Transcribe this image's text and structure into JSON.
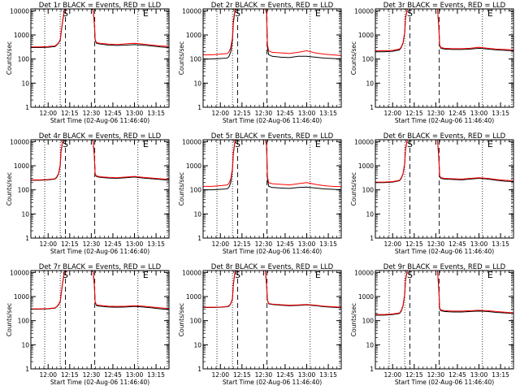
{
  "chart_data": {
    "type": "line",
    "layout": "grid-3x3",
    "y_scale": "log",
    "ylim": [
      1,
      12000
    ],
    "y_ticks": [
      1,
      10,
      100,
      1000,
      10000
    ],
    "y_tick_labels": [
      "1",
      "10",
      "100",
      "1000",
      "10000"
    ],
    "ylabel": "Counts/sec",
    "xlabel": "Start Time (02-Aug-06 11:46:40)",
    "x_range_hours": [
      11.8,
      13.4
    ],
    "x_ticks": [
      12.0,
      12.25,
      12.5,
      12.75,
      13.0,
      13.25
    ],
    "x_tick_labels": [
      "12:00",
      "12:15",
      "12:30",
      "12:45",
      "13:00",
      "13:15"
    ],
    "series_colors": {
      "events": "#000000",
      "lld": "#ff0000"
    },
    "markers": {
      "dotted_lines_x": [
        11.96,
        12.14,
        13.04,
        13.38
      ],
      "dashed_lines_x": [
        12.2,
        12.54
      ],
      "S_x": 12.2,
      "E_x": 13.13
    },
    "x": [
      11.8,
      11.9,
      12.0,
      12.08,
      12.1,
      12.12,
      12.14,
      12.15,
      12.17,
      12.19,
      12.21,
      12.5,
      12.52,
      12.535,
      12.545,
      12.56,
      12.6,
      12.7,
      12.8,
      12.9,
      13.0,
      13.1,
      13.2,
      13.3,
      13.4
    ],
    "panels": [
      {
        "title": "Det 1r BLACK = Events, RED = LLD",
        "events": [
          300,
          300,
          310,
          330,
          380,
          450,
          600,
          1200,
          4000,
          11000,
          12000,
          12000,
          11000,
          3000,
          600,
          450,
          420,
          380,
          370,
          380,
          400,
          380,
          350,
          320,
          300
        ],
        "lld": [
          320,
          320,
          330,
          350,
          400,
          470,
          650,
          1300,
          4500,
          12000,
          12000,
          12000,
          12000,
          3500,
          650,
          480,
          450,
          420,
          400,
          430,
          450,
          420,
          380,
          350,
          330
        ]
      },
      {
        "title": "Det 2r BLACK = Events, RED = LLD",
        "events": [
          100,
          100,
          105,
          110,
          130,
          200,
          600,
          3000,
          11000,
          12000,
          12000,
          12000,
          12000,
          8000,
          300,
          150,
          130,
          120,
          115,
          130,
          130,
          120,
          110,
          105,
          100
        ],
        "lld": [
          150,
          150,
          160,
          170,
          200,
          300,
          800,
          4000,
          12000,
          12000,
          12000,
          12000,
          12000,
          9000,
          400,
          220,
          190,
          180,
          170,
          190,
          220,
          180,
          160,
          150,
          140
        ]
      },
      {
        "title": "Det 3r BLACK = Events, RED = LLD",
        "events": [
          200,
          200,
          210,
          240,
          300,
          450,
          1200,
          5000,
          12000,
          12000,
          12000,
          12000,
          12000,
          2000,
          350,
          280,
          260,
          250,
          250,
          260,
          280,
          260,
          240,
          230,
          220
        ],
        "lld": [
          220,
          220,
          230,
          260,
          320,
          480,
          1300,
          5500,
          12000,
          12000,
          12000,
          12000,
          12000,
          2200,
          380,
          300,
          280,
          270,
          270,
          280,
          310,
          280,
          260,
          250,
          240
        ]
      },
      {
        "title": "Det 4r BLACK = Events, RED = LLD",
        "events": [
          250,
          250,
          260,
          280,
          330,
          450,
          1000,
          4000,
          11000,
          12000,
          12000,
          12000,
          11000,
          2500,
          420,
          360,
          330,
          310,
          300,
          320,
          340,
          310,
          290,
          270,
          250
        ],
        "lld": [
          260,
          260,
          270,
          290,
          350,
          480,
          1100,
          4500,
          12000,
          12000,
          12000,
          12000,
          12000,
          2800,
          450,
          380,
          350,
          330,
          320,
          340,
          360,
          330,
          310,
          290,
          270
        ]
      },
      {
        "title": "Det 5r BLACK = Events, RED = LLD",
        "events": [
          100,
          100,
          105,
          110,
          130,
          200,
          700,
          3000,
          11000,
          12000,
          12000,
          12000,
          12000,
          7000,
          280,
          140,
          125,
          120,
          115,
          125,
          130,
          120,
          110,
          105,
          100
        ],
        "lld": [
          140,
          140,
          150,
          160,
          190,
          280,
          800,
          3500,
          12000,
          12000,
          12000,
          12000,
          12000,
          8000,
          350,
          200,
          180,
          170,
          160,
          180,
          200,
          170,
          150,
          140,
          135
        ]
      },
      {
        "title": "Det 6r BLACK = Events, RED = LLD",
        "events": [
          200,
          200,
          210,
          240,
          300,
          450,
          1200,
          5000,
          12000,
          12000,
          12000,
          12000,
          12000,
          2000,
          350,
          300,
          280,
          270,
          260,
          280,
          300,
          280,
          250,
          230,
          220
        ],
        "lld": [
          210,
          210,
          220,
          250,
          320,
          470,
          1300,
          5500,
          12000,
          12000,
          12000,
          12000,
          12000,
          2200,
          380,
          320,
          300,
          290,
          280,
          300,
          320,
          300,
          270,
          250,
          240
        ]
      },
      {
        "title": "Det 7r BLACK = Events, RED = LLD",
        "events": [
          300,
          300,
          310,
          330,
          380,
          450,
          600,
          1200,
          4000,
          11000,
          12000,
          12000,
          11000,
          3000,
          550,
          420,
          400,
          370,
          360,
          370,
          390,
          370,
          340,
          310,
          290
        ],
        "lld": [
          310,
          310,
          320,
          340,
          390,
          470,
          640,
          1300,
          4400,
          12000,
          12000,
          12000,
          12000,
          3300,
          600,
          450,
          430,
          400,
          390,
          400,
          420,
          400,
          370,
          340,
          320
        ]
      },
      {
        "title": "Det 8r BLACK = Events, RED = LLD",
        "events": [
          350,
          350,
          360,
          380,
          400,
          500,
          800,
          3000,
          11000,
          12000,
          12000,
          12000,
          12000,
          3000,
          700,
          500,
          470,
          440,
          420,
          430,
          450,
          420,
          380,
          360,
          340
        ],
        "lld": [
          360,
          360,
          370,
          390,
          420,
          520,
          850,
          3200,
          12000,
          12000,
          12000,
          12000,
          12000,
          3300,
          750,
          520,
          490,
          460,
          440,
          450,
          470,
          440,
          400,
          380,
          360
        ]
      },
      {
        "title": "Det 9r BLACK = Events, RED = LLD",
        "events": [
          170,
          170,
          180,
          200,
          250,
          400,
          1200,
          5000,
          12000,
          12000,
          12000,
          12000,
          12000,
          1800,
          300,
          260,
          240,
          230,
          230,
          240,
          250,
          240,
          220,
          210,
          200
        ],
        "lld": [
          180,
          180,
          190,
          210,
          270,
          430,
          1300,
          5500,
          12000,
          12000,
          12000,
          12000,
          12000,
          2000,
          320,
          280,
          260,
          250,
          250,
          260,
          270,
          260,
          240,
          225,
          210
        ]
      }
    ]
  }
}
